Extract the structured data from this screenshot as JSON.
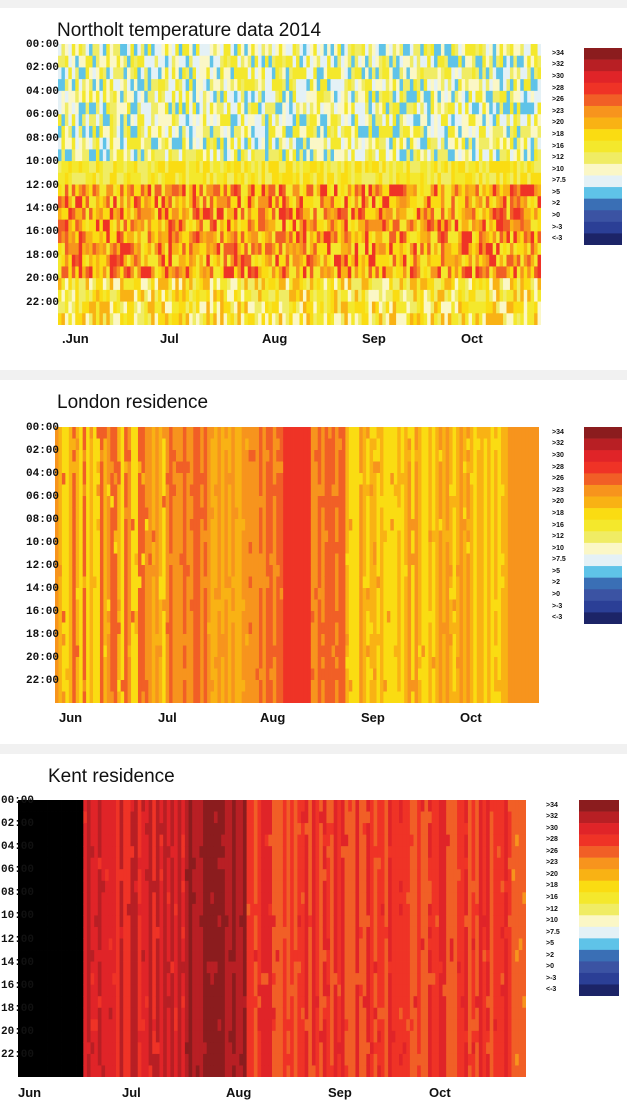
{
  "colors": {
    "scale": [
      "#8b1c1e",
      "#b81f24",
      "#e02428",
      "#ef3326",
      "#f15f26",
      "#f7941d",
      "#f9b214",
      "#fadc12",
      "#f4e82c",
      "#f0ec64",
      "#fbf7c6",
      "#e4f1f6",
      "#5fc3e8",
      "#3a6fb5",
      "#3b53a3",
      "#2b3f96",
      "#1c2467"
    ]
  },
  "legend": {
    "labels": [
      ">34",
      ">32",
      ">30",
      ">28",
      ">26",
      ">23",
      ">20",
      ">18",
      ">16",
      ">12",
      ">10",
      ">7.5",
      ">5",
      ">2",
      ">0",
      ">-3",
      "<-3"
    ]
  },
  "y_ticks": [
    "00:00",
    "02:00",
    "04:00",
    "06:00",
    "08:00",
    "10:00",
    "12:00",
    "14:00",
    "16:00",
    "18:00",
    "20:00",
    "22:00"
  ],
  "chart_data": [
    {
      "type": "heatmap",
      "title": "Northolt temperature data 2014",
      "x_tick_labels": [
        ".Jun",
        "Jul",
        "Aug",
        "Sep",
        "Oct"
      ],
      "y_tick_labels": [
        "00:00",
        "02:00",
        "04:00",
        "06:00",
        "08:00",
        "10:00",
        "12:00",
        "14:00",
        "16:00",
        "18:00",
        "20:00",
        "22:00"
      ],
      "grid": false,
      "legend_position": "right",
      "n_days": 140,
      "bands": [
        {
          "from_hour": 0,
          "to_hour": 10,
          "color_index": 9,
          "vary": [
            8,
            9,
            10,
            11,
            12
          ]
        },
        {
          "from_hour": 10,
          "to_hour": 12,
          "color_index": 8,
          "vary": [
            7,
            8,
            9
          ]
        },
        {
          "from_hour": 12,
          "to_hour": 20,
          "color_index": 5,
          "vary": [
            3,
            4,
            5,
            6,
            7,
            8
          ]
        },
        {
          "from_hour": 20,
          "to_hour": 24,
          "color_index": 8,
          "vary": [
            6,
            7,
            8,
            9,
            10
          ]
        }
      ]
    },
    {
      "type": "heatmap",
      "title": "London residence",
      "x_tick_labels": [
        "Jun",
        "Jul",
        "Aug",
        "Sep",
        "Oct"
      ],
      "y_tick_labels": [
        "00:00",
        "02:00",
        "04:00",
        "06:00",
        "08:00",
        "10:00",
        "12:00",
        "14:00",
        "16:00",
        "18:00",
        "20:00",
        "22:00"
      ],
      "grid": false,
      "legend_position": "right",
      "n_days": 140,
      "day_segments": [
        {
          "from_day": 0,
          "to_day": 32,
          "color_index": 5,
          "vary": [
            4,
            5,
            6,
            7
          ]
        },
        {
          "from_day": 32,
          "to_day": 44,
          "color_index": 4,
          "vary": [
            4,
            5
          ]
        },
        {
          "from_day": 44,
          "to_day": 56,
          "color_index": 5,
          "vary": [
            5,
            6
          ]
        },
        {
          "from_day": 56,
          "to_day": 66,
          "color_index": 4,
          "vary": [
            4,
            5
          ]
        },
        {
          "from_day": 66,
          "to_day": 74,
          "color_index": 3,
          "vary": [
            3
          ]
        },
        {
          "from_day": 74,
          "to_day": 84,
          "color_index": 4,
          "vary": [
            4,
            5
          ]
        },
        {
          "from_day": 84,
          "to_day": 120,
          "color_index": 5,
          "vary": [
            5,
            6,
            7
          ]
        },
        {
          "from_day": 120,
          "to_day": 131,
          "color_index": 7,
          "vary": [
            6,
            7
          ]
        },
        {
          "from_day": 131,
          "to_day": 140,
          "color_index": 5,
          "vary": [
            5
          ]
        }
      ]
    },
    {
      "type": "heatmap",
      "title": "Kent residence",
      "x_tick_labels": [
        "Jun",
        "Jul",
        "Aug",
        "Sep",
        "Oct"
      ],
      "y_tick_labels": [
        "00:00",
        "02:00",
        "04:00",
        "06:00",
        "08:00",
        "10:00",
        "12:00",
        "14:00",
        "16:00",
        "18:00",
        "20:00",
        "22:00"
      ],
      "grid": false,
      "legend_position": "right",
      "n_days": 140,
      "missing_days": [
        0,
        18
      ],
      "day_segments": [
        {
          "from_day": 18,
          "to_day": 46,
          "color_index": 2,
          "vary": [
            1,
            2,
            3
          ]
        },
        {
          "from_day": 46,
          "to_day": 63,
          "color_index": 0,
          "vary": [
            0,
            1
          ]
        },
        {
          "from_day": 63,
          "to_day": 136,
          "color_index": 2,
          "vary": [
            2,
            3,
            4
          ]
        },
        {
          "from_day": 136,
          "to_day": 140,
          "color_index": 4,
          "vary": [
            4,
            5
          ]
        }
      ]
    }
  ]
}
